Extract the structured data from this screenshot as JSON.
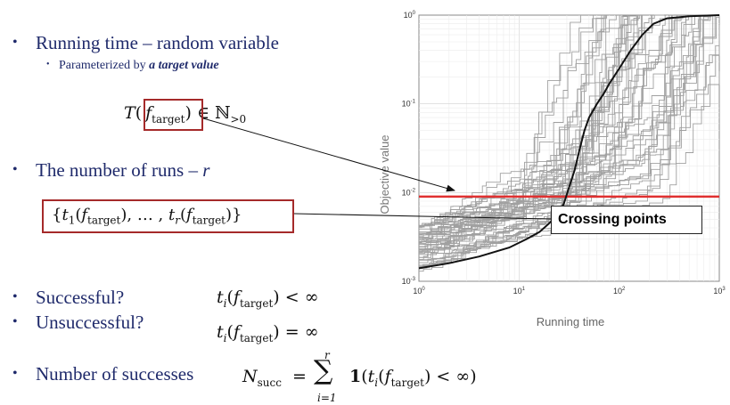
{
  "bullets": [
    {
      "text": "Running time – random variable"
    },
    {
      "text": "The number of runs – ",
      "var": "r"
    },
    {
      "text": "Successful?"
    },
    {
      "text": "Unsuccessful?"
    },
    {
      "text": "Number of successes"
    }
  ],
  "sub_bullet": {
    "prefix": "Parameterized by ",
    "emph": "a target value"
  },
  "formulas": {
    "T": "T",
    "f": "f",
    "target": "target",
    "elem": "∈ ℕ",
    "gt0": ">0",
    "set_open": "{",
    "t1": "t",
    "one": "1",
    "r": "r",
    "ellipsis": ", … , ",
    "set_close": "}",
    "ti": "t",
    "i": "i",
    "lt_inf": "< ∞",
    "eq_inf": "= ∞",
    "N": "N",
    "succ": "succ",
    "eq": "=",
    "sum_sym": "∑",
    "sum_top": "r",
    "sum_bot": "i=1",
    "indicator": "1",
    "colors": {
      "box": "#a52a2a",
      "text": "#1f2a6b"
    }
  },
  "callout": "Crossing points",
  "chart_data": {
    "type": "line",
    "xlabel": "Running time",
    "ylabel": "Objective value",
    "x_scale": "log",
    "y_scale": "log",
    "xlim": [
      1,
      1000
    ],
    "ylim": [
      0.001,
      1
    ],
    "x_ticks": [
      {
        "base": "10",
        "exp": "0"
      },
      {
        "base": "10",
        "exp": "1"
      },
      {
        "base": "10",
        "exp": "2"
      },
      {
        "base": "10",
        "exp": "3"
      }
    ],
    "y_ticks": [
      {
        "base": "10",
        "exp": "-3"
      },
      {
        "base": "10",
        "exp": "-2"
      },
      {
        "base": "10",
        "exp": "-1"
      },
      {
        "base": "10",
        "exp": "0"
      }
    ],
    "grid": true,
    "target_line": {
      "y": 0.009,
      "color": "#e03030"
    },
    "colors": {
      "runs": "#a0a0a0",
      "median": "#111111",
      "arrow": "#111111"
    },
    "median": {
      "x": [
        1,
        2,
        4,
        8,
        12,
        16,
        20,
        24,
        28,
        32,
        36,
        40,
        45,
        50,
        60,
        70,
        80,
        100,
        130,
        170,
        220,
        300,
        500,
        1000
      ],
      "y": [
        0.0014,
        0.0016,
        0.0019,
        0.0024,
        0.003,
        0.0036,
        0.0045,
        0.0055,
        0.0075,
        0.012,
        0.018,
        0.03,
        0.05,
        0.07,
        0.1,
        0.13,
        0.17,
        0.25,
        0.4,
        0.6,
        0.8,
        0.92,
        0.97,
        1.0
      ]
    },
    "runs_count": 50,
    "runs_seed": 7
  }
}
